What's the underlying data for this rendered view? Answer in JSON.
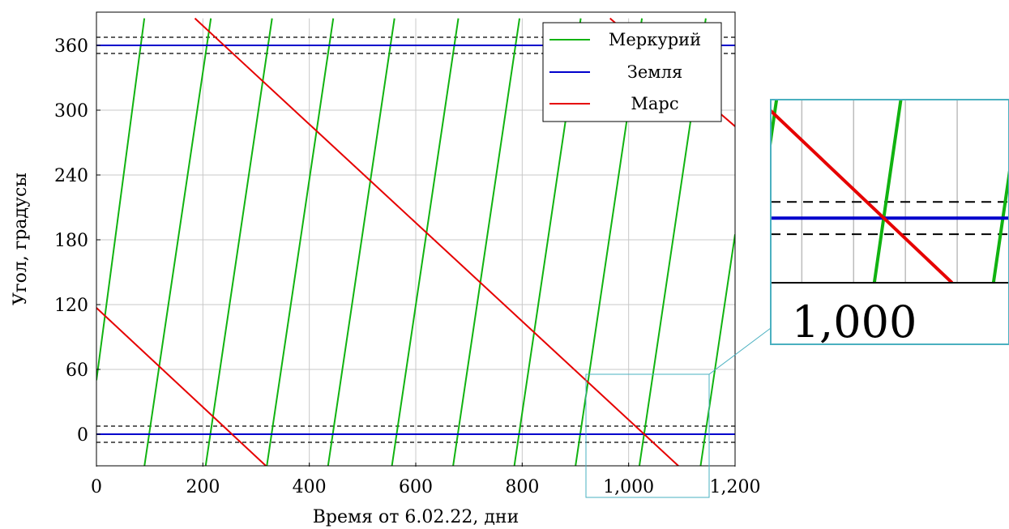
{
  "chart_data": {
    "type": "line",
    "xlabel": "Время от 6.02.22, дни",
    "ylabel": "Угол, градусы",
    "xlim": [
      0,
      1200
    ],
    "ylim": [
      -30,
      385
    ],
    "xticks": [
      0,
      200,
      400,
      600,
      800,
      1000,
      1200
    ],
    "xtick_labels": [
      "0",
      "200",
      "400",
      "600",
      "800",
      "1,000",
      "1,200"
    ],
    "yticks": [
      0,
      60,
      120,
      180,
      240,
      300,
      360
    ],
    "ytick_labels": [
      "0",
      "60",
      "120",
      "180",
      "240",
      "300",
      "360"
    ],
    "grid": true,
    "legend_position": "top-right",
    "series": [
      {
        "name": "Меркурий",
        "color": "#11b311",
        "segments": [
          [
            [
              0,
              50
            ],
            [
              90,
              385
            ]
          ],
          [
            [
              90,
              -30
            ],
            [
              215,
              385
            ]
          ],
          [
            [
              205,
              -30
            ],
            [
              330,
              385
            ]
          ],
          [
            [
              320,
              -30
            ],
            [
              445,
              385
            ]
          ],
          [
            [
              435,
              -30
            ],
            [
              560,
              385
            ]
          ],
          [
            [
              555,
              -30
            ],
            [
              680,
              385
            ]
          ],
          [
            [
              670,
              -30
            ],
            [
              795,
              385
            ]
          ],
          [
            [
              785,
              -30
            ],
            [
              910,
              385
            ]
          ],
          [
            [
              900,
              -30
            ],
            [
              1025,
              385
            ]
          ],
          [
            [
              1020,
              -30
            ],
            [
              1145,
              385
            ]
          ],
          [
            [
              1135,
              -30
            ],
            [
              1200,
              185
            ]
          ]
        ]
      },
      {
        "name": "Земля",
        "color": "#0000cc",
        "segments": [
          [
            [
              0,
              0
            ],
            [
              1200,
              0
            ]
          ],
          [
            [
              0,
              360
            ],
            [
              1200,
              360
            ]
          ]
        ]
      },
      {
        "name": "Марс",
        "color": "#e60000",
        "segments": [
          [
            [
              0,
              117
            ],
            [
              320,
              -30
            ]
          ],
          [
            [
              185,
              385
            ],
            [
              1095,
              -30
            ]
          ],
          [
            [
              965,
              385
            ],
            [
              1200,
              285
            ]
          ]
        ]
      }
    ],
    "reference_lines": {
      "style": "dashed",
      "color": "#000000",
      "y": [
        -7.5,
        7.5,
        352.5,
        367.5
      ]
    },
    "inset": {
      "tick_label": "1,000",
      "xlim": [
        920,
        1150
      ],
      "ylim": [
        -30,
        55
      ]
    }
  }
}
